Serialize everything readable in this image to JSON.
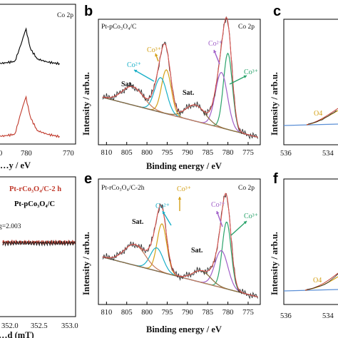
{
  "chart_data": [
    {
      "panel": "a",
      "type": "line",
      "visible_partial": true,
      "title": "Co 2p",
      "xlabel": "…y / eV",
      "xticks": [
        "780",
        "770"
      ],
      "xlim": [
        795,
        767
      ],
      "series": [
        {
          "color": "#000000",
          "x": [
            795,
            790,
            786,
            783,
            781.5,
            780.3,
            779.2,
            777.5,
            775,
            772
          ],
          "y": [
            0.3,
            0.3,
            0.31,
            0.34,
            0.62,
            0.88,
            0.55,
            0.38,
            0.33,
            0.3
          ]
        },
        {
          "color": "#c0392b",
          "x": [
            795,
            790,
            786,
            783,
            781.5,
            780.3,
            779.2,
            777.5,
            775,
            772
          ],
          "y": [
            0.05,
            0.0,
            -0.01,
            0.02,
            0.38,
            0.64,
            0.3,
            0.08,
            0.02,
            -0.02
          ]
        }
      ]
    },
    {
      "panel": "b",
      "type": "line",
      "title_left": "Pt-pCo₃O₄/C",
      "title_right": "Co 2p",
      "xlabel": "Binding energy / eV",
      "ylabel": "Intensity / arb.u.",
      "xlim": [
        812,
        772
      ],
      "xticks": [
        810,
        805,
        800,
        795,
        790,
        785,
        780,
        775
      ],
      "annotations": [
        {
          "text": "Sat.",
          "x": 805
        },
        {
          "text": "Co³⁺",
          "x": 796.5,
          "color": "#d4a017"
        },
        {
          "text": "Co²⁺",
          "x": 797.5,
          "color": "#1ab0c8"
        },
        {
          "text": "Sat.",
          "x": 789
        },
        {
          "text": "Co²⁺",
          "x": 782.5,
          "color": "#a05fc8"
        },
        {
          "text": "Co³⁺",
          "x": 779.5,
          "color": "#2aa36b"
        }
      ],
      "components": [
        {
          "name": "background",
          "color": "#5b8fd6"
        },
        {
          "name": "Co3+ 2p1/2",
          "color": "#d4a017",
          "center": 795.2,
          "height": 0.38,
          "width": 1.2
        },
        {
          "name": "Co2+ 2p1/2",
          "color": "#1ab0c8",
          "center": 796.6,
          "height": 0.3,
          "width": 1.5
        },
        {
          "name": "Co3+ 2p3/2",
          "color": "#2aa36b",
          "center": 780.0,
          "height": 0.66,
          "width": 1.1
        },
        {
          "name": "Co2+ 2p3/2",
          "color": "#a05fc8",
          "center": 781.6,
          "height": 0.48,
          "width": 1.5
        },
        {
          "name": "Sat. 1",
          "color": "#c77b5a",
          "center": 803.5,
          "height": 0.16,
          "width": 2.6
        },
        {
          "name": "Sat. 2",
          "color": "#8a6d3b",
          "center": 788.0,
          "height": 0.14,
          "width": 2.4
        }
      ]
    },
    {
      "panel": "c",
      "type": "line",
      "visible_partial": true,
      "ylabel": "Intensity / arb.u.",
      "xticks": [
        536,
        534
      ],
      "annotations": [
        {
          "text": "O4",
          "color": "#d4a017"
        }
      ]
    },
    {
      "panel": "d",
      "type": "line",
      "visible_partial": true,
      "legend": [
        "Pt-rCo₃O₄/C-2 h",
        "Pt-pCo₃O₄/C"
      ],
      "legend_colors": [
        "#c0392b",
        "#000000"
      ],
      "annotation": "g=2.003",
      "xlabel": "…d (mT)",
      "xticks": [
        "352.0",
        "352.5",
        "353.0"
      ],
      "xlim": [
        351.55,
        353.1
      ]
    },
    {
      "panel": "e",
      "type": "line",
      "title_left": "Pt-rCo₃O₄/C-2h",
      "title_right": "Co 2p",
      "xlabel": "Binding energy / eV",
      "ylabel": "Intensity / arb.u.",
      "xlim": [
        812,
        772
      ],
      "xticks": [
        810,
        805,
        800,
        795,
        790,
        785,
        780,
        775
      ],
      "annotations": [
        {
          "text": "Sat.",
          "x": 805
        },
        {
          "text": "Co³⁺",
          "x": 796.5,
          "color": "#d4a017"
        },
        {
          "text": "Co²⁺",
          "x": 799.5,
          "color": "#1ab0c8"
        },
        {
          "text": "Sat.",
          "x": 787.5
        },
        {
          "text": "Co²⁺",
          "x": 782.5,
          "color": "#a05fc8"
        },
        {
          "text": "Co³⁺",
          "x": 779.5,
          "color": "#2aa36b"
        }
      ],
      "components": [
        {
          "name": "background",
          "color": "#5b8fd6"
        },
        {
          "name": "Co3+ 2p1/2",
          "color": "#d4a017",
          "center": 796.3,
          "height": 0.42,
          "width": 1.2
        },
        {
          "name": "Co2+ 2p1/2",
          "color": "#1ab0c8",
          "center": 797.6,
          "height": 0.2,
          "width": 1.6
        },
        {
          "name": "Co3+ 2p3/2",
          "color": "#2aa36b",
          "center": 780.3,
          "height": 0.58,
          "width": 1.1
        },
        {
          "name": "Co2+ 2p3/2",
          "color": "#a05fc8",
          "center": 781.6,
          "height": 0.32,
          "width": 1.6
        },
        {
          "name": "Sat. 1",
          "color": "#c77b5a",
          "center": 803.0,
          "height": 0.18,
          "width": 2.6
        },
        {
          "name": "Sat. 2",
          "color": "#8a6d3b",
          "center": 786.5,
          "height": 0.1,
          "width": 2.2
        }
      ]
    },
    {
      "panel": "f",
      "type": "line",
      "visible_partial": true,
      "ylabel": "Intensity / arb.u.",
      "xticks": [
        536,
        534
      ],
      "annotations": [
        {
          "text": "O4",
          "color": "#d4a017"
        }
      ]
    }
  ],
  "labels": {
    "a": "a",
    "b": "b",
    "c": "c",
    "d": "d",
    "e": "e",
    "f": "f"
  }
}
